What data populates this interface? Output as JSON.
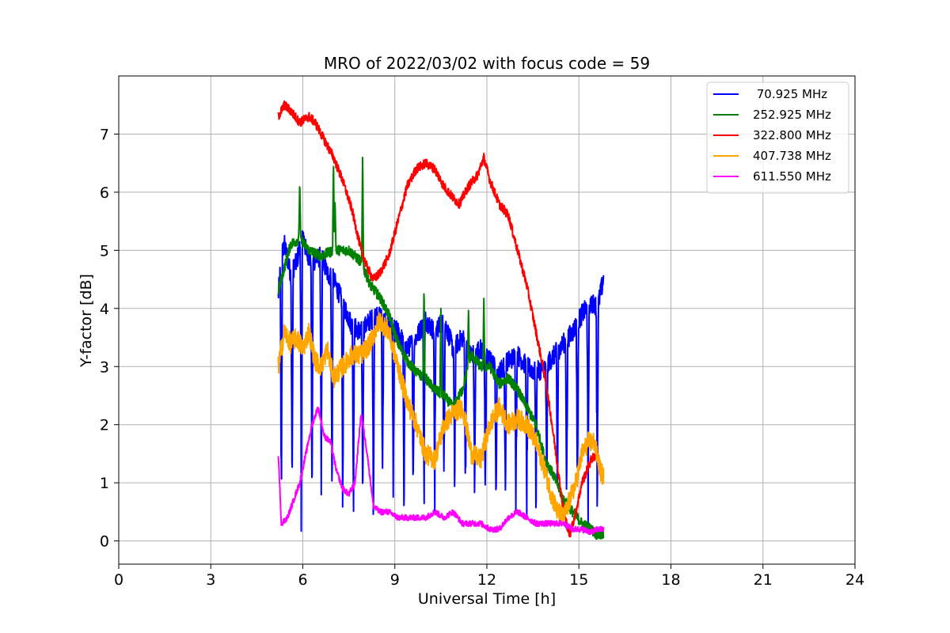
{
  "chart_data": {
    "type": "line",
    "title": "MRO of 2022/03/02 with focus code = 59",
    "xlabel": "Universal Time [h]",
    "ylabel": "Y-factor [dB]",
    "xlim": [
      0,
      24
    ],
    "ylim": [
      -0.4,
      8.0
    ],
    "xticks": [
      0,
      3,
      6,
      9,
      12,
      15,
      18,
      21,
      24
    ],
    "yticks": [
      0,
      1,
      2,
      3,
      4,
      5,
      6,
      7
    ],
    "grid": true,
    "legend_position": "top-right",
    "series": [
      {
        "name": " 70.925 MHz",
        "color": "#0000ff",
        "x": [
          5.2,
          5.3,
          5.4,
          5.6,
          5.8,
          6.0,
          6.1,
          6.3,
          6.6,
          6.8,
          7.0,
          7.3,
          7.6,
          7.9,
          8.2,
          8.5,
          8.8,
          9.1,
          9.4,
          9.7,
          10.0,
          10.3,
          10.6,
          10.9,
          11.2,
          11.5,
          11.8,
          12.1,
          12.4,
          12.7,
          13.0,
          13.3,
          13.6,
          13.9,
          14.2,
          14.5,
          14.8,
          15.1,
          15.4,
          15.6,
          15.8
        ],
        "y": [
          4.2,
          4.9,
          5.1,
          4.6,
          4.8,
          5.3,
          5.0,
          4.8,
          4.9,
          4.6,
          4.5,
          4.1,
          3.7,
          3.6,
          3.8,
          3.9,
          3.7,
          3.6,
          3.3,
          3.5,
          3.8,
          3.6,
          3.8,
          3.3,
          3.5,
          3.2,
          3.3,
          3.1,
          2.9,
          3.1,
          3.2,
          3.0,
          2.9,
          3.0,
          3.2,
          3.4,
          3.6,
          3.9,
          4.1,
          4.0,
          4.5
        ],
        "dips": [
          5.3,
          5.65,
          5.95,
          6.3,
          6.6,
          6.95,
          7.3,
          7.65,
          7.95,
          8.3,
          8.6,
          8.95,
          9.3,
          9.6,
          9.95,
          10.3,
          10.6,
          10.95,
          11.3,
          11.6,
          11.95,
          12.3,
          12.6,
          12.95,
          13.3,
          13.6,
          13.95,
          14.3,
          14.6,
          14.95,
          15.3,
          15.6
        ]
      },
      {
        "name": "252.925 MHz",
        "color": "#008000",
        "x": [
          5.2,
          5.4,
          5.6,
          5.9,
          6.2,
          6.6,
          7.0,
          7.5,
          7.9,
          8.2,
          8.5,
          8.8,
          9.1,
          9.4,
          9.7,
          10.0,
          10.3,
          10.6,
          10.9,
          11.2,
          11.5,
          11.8,
          12.1,
          12.4,
          12.7,
          13.0,
          13.3,
          13.6,
          13.9,
          14.2,
          14.5,
          14.8,
          15.1,
          15.4,
          15.6,
          15.8
        ],
        "y": [
          4.3,
          4.7,
          5.1,
          5.2,
          5.0,
          4.9,
          5.0,
          5.0,
          4.8,
          4.4,
          4.2,
          3.9,
          3.4,
          3.1,
          2.9,
          2.8,
          2.6,
          2.5,
          2.3,
          2.6,
          3.2,
          3.0,
          3.0,
          2.7,
          2.8,
          2.6,
          2.3,
          2.0,
          1.4,
          1.1,
          0.7,
          0.5,
          0.3,
          0.2,
          0.1,
          0.1
        ],
        "spikes": [
          [
            5.9,
            6.2
          ],
          [
            7.0,
            6.55
          ],
          [
            7.05,
            5.9
          ],
          [
            7.95,
            6.7
          ],
          [
            9.95,
            4.4
          ],
          [
            10.5,
            4.0
          ],
          [
            11.4,
            4.0
          ],
          [
            11.9,
            4.2
          ]
        ]
      },
      {
        "name": "322.800 MHz",
        "color": "#ff0000",
        "x": [
          5.2,
          5.4,
          5.6,
          5.9,
          6.2,
          6.4,
          6.7,
          7.0,
          7.3,
          7.6,
          7.9,
          8.1,
          8.3,
          8.5,
          8.8,
          9.1,
          9.4,
          9.7,
          10.0,
          10.3,
          10.6,
          10.9,
          11.1,
          11.4,
          11.7,
          11.9,
          12.1,
          12.4,
          12.7,
          13.0,
          13.3,
          13.6,
          13.9,
          14.1,
          14.3,
          14.5,
          14.7,
          14.9,
          15.1,
          15.4,
          15.6,
          15.8
        ],
        "y": [
          7.3,
          7.5,
          7.4,
          7.2,
          7.3,
          7.2,
          6.9,
          6.6,
          6.2,
          5.7,
          5.0,
          4.7,
          4.5,
          4.6,
          4.9,
          5.5,
          6.1,
          6.4,
          6.5,
          6.4,
          6.1,
          5.9,
          5.8,
          6.1,
          6.3,
          6.6,
          6.2,
          5.8,
          5.6,
          5.0,
          4.4,
          3.6,
          2.8,
          2.1,
          1.3,
          0.5,
          0.1,
          0.5,
          1.0,
          1.4,
          1.5,
          1.1
        ]
      },
      {
        "name": "407.738 MHz",
        "color": "#ffa500",
        "x": [
          5.2,
          5.4,
          5.6,
          5.8,
          6.0,
          6.2,
          6.4,
          6.6,
          6.8,
          7.0,
          7.3,
          7.6,
          7.9,
          8.2,
          8.5,
          8.8,
          9.1,
          9.4,
          9.7,
          10.0,
          10.3,
          10.6,
          10.9,
          11.2,
          11.5,
          11.8,
          12.1,
          12.4,
          12.7,
          13.0,
          13.3,
          13.6,
          13.9,
          14.1,
          14.3,
          14.5,
          14.7,
          14.9,
          15.1,
          15.3,
          15.5,
          15.7,
          15.8
        ],
        "y": [
          3.0,
          3.6,
          3.4,
          3.5,
          3.3,
          3.6,
          3.1,
          3.0,
          3.3,
          2.8,
          3.0,
          3.2,
          3.2,
          3.4,
          3.8,
          3.6,
          3.0,
          2.4,
          2.0,
          1.5,
          1.4,
          2.0,
          2.2,
          2.3,
          1.5,
          1.4,
          2.0,
          2.3,
          2.0,
          2.1,
          2.0,
          1.7,
          1.2,
          0.8,
          0.5,
          0.4,
          0.7,
          1.0,
          1.5,
          1.7,
          1.7,
          1.2,
          1.1
        ]
      },
      {
        "name": "611.550 MHz",
        "color": "#ff00ff",
        "x": [
          5.2,
          5.3,
          5.5,
          5.7,
          5.9,
          6.1,
          6.3,
          6.5,
          6.7,
          6.9,
          7.1,
          7.3,
          7.5,
          7.7,
          7.9,
          8.1,
          8.3,
          8.5,
          8.8,
          9.1,
          9.4,
          9.7,
          10.0,
          10.3,
          10.6,
          10.9,
          11.2,
          11.5,
          11.8,
          12.1,
          12.4,
          12.7,
          13.0,
          13.3,
          13.6,
          13.9,
          14.2,
          14.5,
          14.8,
          15.1,
          15.4,
          15.6,
          15.8
        ],
        "y": [
          1.5,
          0.3,
          0.4,
          0.7,
          1.0,
          1.5,
          2.0,
          2.3,
          1.8,
          1.7,
          1.2,
          0.9,
          0.8,
          1.0,
          2.2,
          1.5,
          0.6,
          0.5,
          0.5,
          0.4,
          0.4,
          0.4,
          0.4,
          0.5,
          0.4,
          0.5,
          0.3,
          0.3,
          0.3,
          0.2,
          0.2,
          0.4,
          0.5,
          0.4,
          0.3,
          0.3,
          0.3,
          0.3,
          0.2,
          0.2,
          0.15,
          0.2,
          0.2
        ]
      }
    ]
  }
}
